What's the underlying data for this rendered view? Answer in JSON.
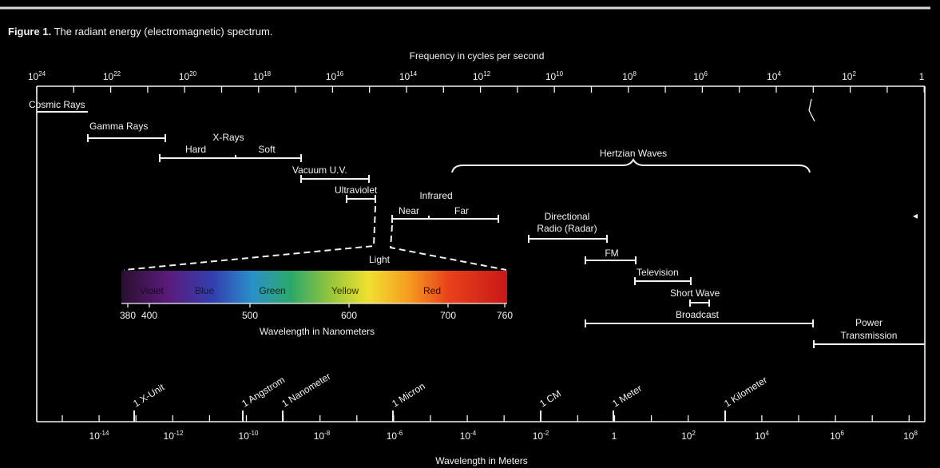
{
  "caption": {
    "bold": "Figure 1.",
    "rest": " The radiant energy (electromagnetic) spectrum."
  },
  "top_axis": {
    "title": "Frequency in cycles per second",
    "ticks": [
      {
        "base": "10",
        "exp": "24"
      },
      {
        "base": "10",
        "exp": "22"
      },
      {
        "base": "10",
        "exp": "20"
      },
      {
        "base": "10",
        "exp": "18"
      },
      {
        "base": "10",
        "exp": "16"
      },
      {
        "base": "10",
        "exp": "14"
      },
      {
        "base": "10",
        "exp": "12"
      },
      {
        "base": "10",
        "exp": "10"
      },
      {
        "base": "10",
        "exp": "8"
      },
      {
        "base": "10",
        "exp": "6"
      },
      {
        "base": "10",
        "exp": "4"
      },
      {
        "base": "10",
        "exp": "2"
      },
      {
        "base": "1",
        "exp": ""
      }
    ]
  },
  "bands": {
    "cosmic_rays": "Cosmic Rays",
    "gamma_rays": "Gamma Rays",
    "x_rays": "X-Rays",
    "hard": "Hard",
    "soft": "Soft",
    "vacuum_uv": "Vacuum U.V.",
    "ultraviolet": "Ultraviolet",
    "infrared": "Infrared",
    "near": "Near",
    "far": "Far",
    "hertzian_waves": "Hertzian Waves",
    "directional_radio_1": "Directional",
    "directional_radio_2": "Radio (Radar)",
    "fm": "FM",
    "television": "Television",
    "short_wave": "Short Wave",
    "broadcast": "Broadcast",
    "power_transmission_1": "Power",
    "power_transmission_2": "Transmission",
    "light": "Light"
  },
  "visible": {
    "colors": [
      "Violet",
      "Blue",
      "Green",
      "Yellow",
      "Red"
    ],
    "ticks": [
      "380",
      "400",
      "500",
      "600",
      "700",
      "760"
    ],
    "axis_title": "Wavelength in Nanometers"
  },
  "bottom_axis": {
    "title": "Wavelength in Meters",
    "ticks": [
      {
        "base": "10",
        "exp": "-14"
      },
      {
        "base": "10",
        "exp": "-12"
      },
      {
        "base": "10",
        "exp": "-10"
      },
      {
        "base": "10",
        "exp": "-8"
      },
      {
        "base": "10",
        "exp": "-6"
      },
      {
        "base": "10",
        "exp": "-4"
      },
      {
        "base": "10",
        "exp": "-2"
      },
      {
        "base": "1",
        "exp": ""
      },
      {
        "base": "10",
        "exp": "2"
      },
      {
        "base": "10",
        "exp": "4"
      },
      {
        "base": "10",
        "exp": "6"
      },
      {
        "base": "10",
        "exp": "8"
      }
    ],
    "units": [
      "1 X-Unit",
      "1 Angstrom",
      "1 Nanometer",
      "1 Micron",
      "1 CM",
      "1 Meter",
      "1 Kilometer"
    ]
  },
  "colors": {
    "background": "#000000",
    "foreground": "#f2f2f2",
    "rule": "#d8d8d8"
  }
}
